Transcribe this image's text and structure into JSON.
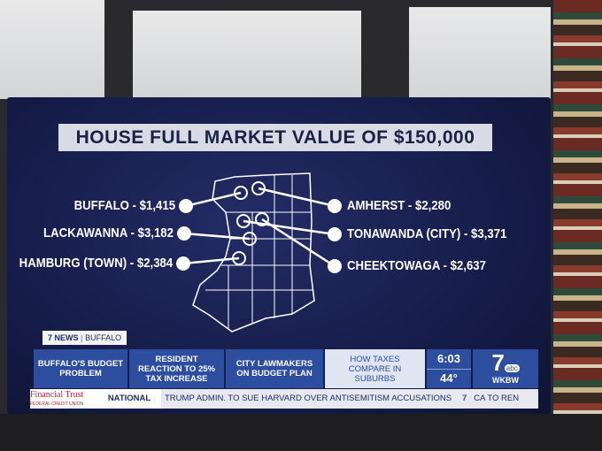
{
  "graphic": {
    "title": "HOUSE FULL MARKET VALUE OF $150,000",
    "left_labels": [
      "BUFFALO - $1,415",
      "LACKAWANNA - $3,182",
      "HAMBURG (TOWN) - $2,384"
    ],
    "right_labels": [
      "AMHERST - $2,280",
      "TONAWANDA (CITY) - $3,371",
      "CHEEKTOWAGA - $2,637"
    ]
  },
  "lower_third": {
    "station": "7 NEWS",
    "location": "BUFFALO",
    "tabs": [
      "BUFFALO'S BUDGET PROBLEM",
      "RESIDENT REACTION TO 25% TAX INCREASE",
      "CITY LAWMAKERS ON BUDGET PLAN",
      "HOW TAXES COMPARE IN SUBURBS"
    ],
    "time": "6:03",
    "temperature": "44°",
    "logo_number": "7",
    "logo_network": "abc",
    "logo_call": "WKBW"
  },
  "ticker": {
    "sponsor": "Financial Trust",
    "sponsor_sub": "FEDERAL CREDIT UNION",
    "section": "NATIONAL",
    "headline": "TRUMP ADMIN. TO SUE HARVARD OVER ANTISEMITISM ACCUSATIONS",
    "next": "CA TO REN"
  }
}
